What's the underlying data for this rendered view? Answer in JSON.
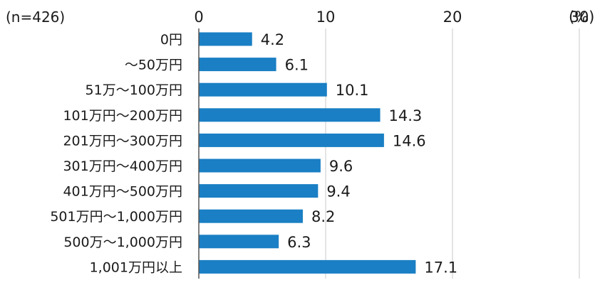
{
  "chart_data": {
    "type": "bar",
    "orientation": "horizontal",
    "sample_note": "(n=426)",
    "unit_label": "(%)",
    "categories": [
      "0円",
      "〜50万円",
      "51万〜100万円",
      "101万円〜200万円",
      "201万円〜300万円",
      "301万円〜400万円",
      "401万円〜500万円",
      "501万円〜1,000万円",
      "500万〜1,000万円",
      "1,001万円以上"
    ],
    "values": [
      4.2,
      6.1,
      10.1,
      14.3,
      14.6,
      9.6,
      9.4,
      8.2,
      6.3,
      17.1
    ],
    "value_labels": [
      "4.2",
      "6.1",
      "10.1",
      "14.3",
      "14.6",
      "9.6",
      "9.4",
      "8.2",
      "6.3",
      "17.1"
    ],
    "xticks": [
      0,
      10,
      20,
      30
    ],
    "xtick_labels": [
      "0",
      "10",
      "20",
      "30"
    ],
    "xlim": [
      0,
      30
    ],
    "grid": true,
    "legend": "none",
    "colors": {
      "bar": "#1a7fc4",
      "grid": "#c8c8c8",
      "axis": "#555555",
      "text": "#1a1a1a"
    }
  }
}
